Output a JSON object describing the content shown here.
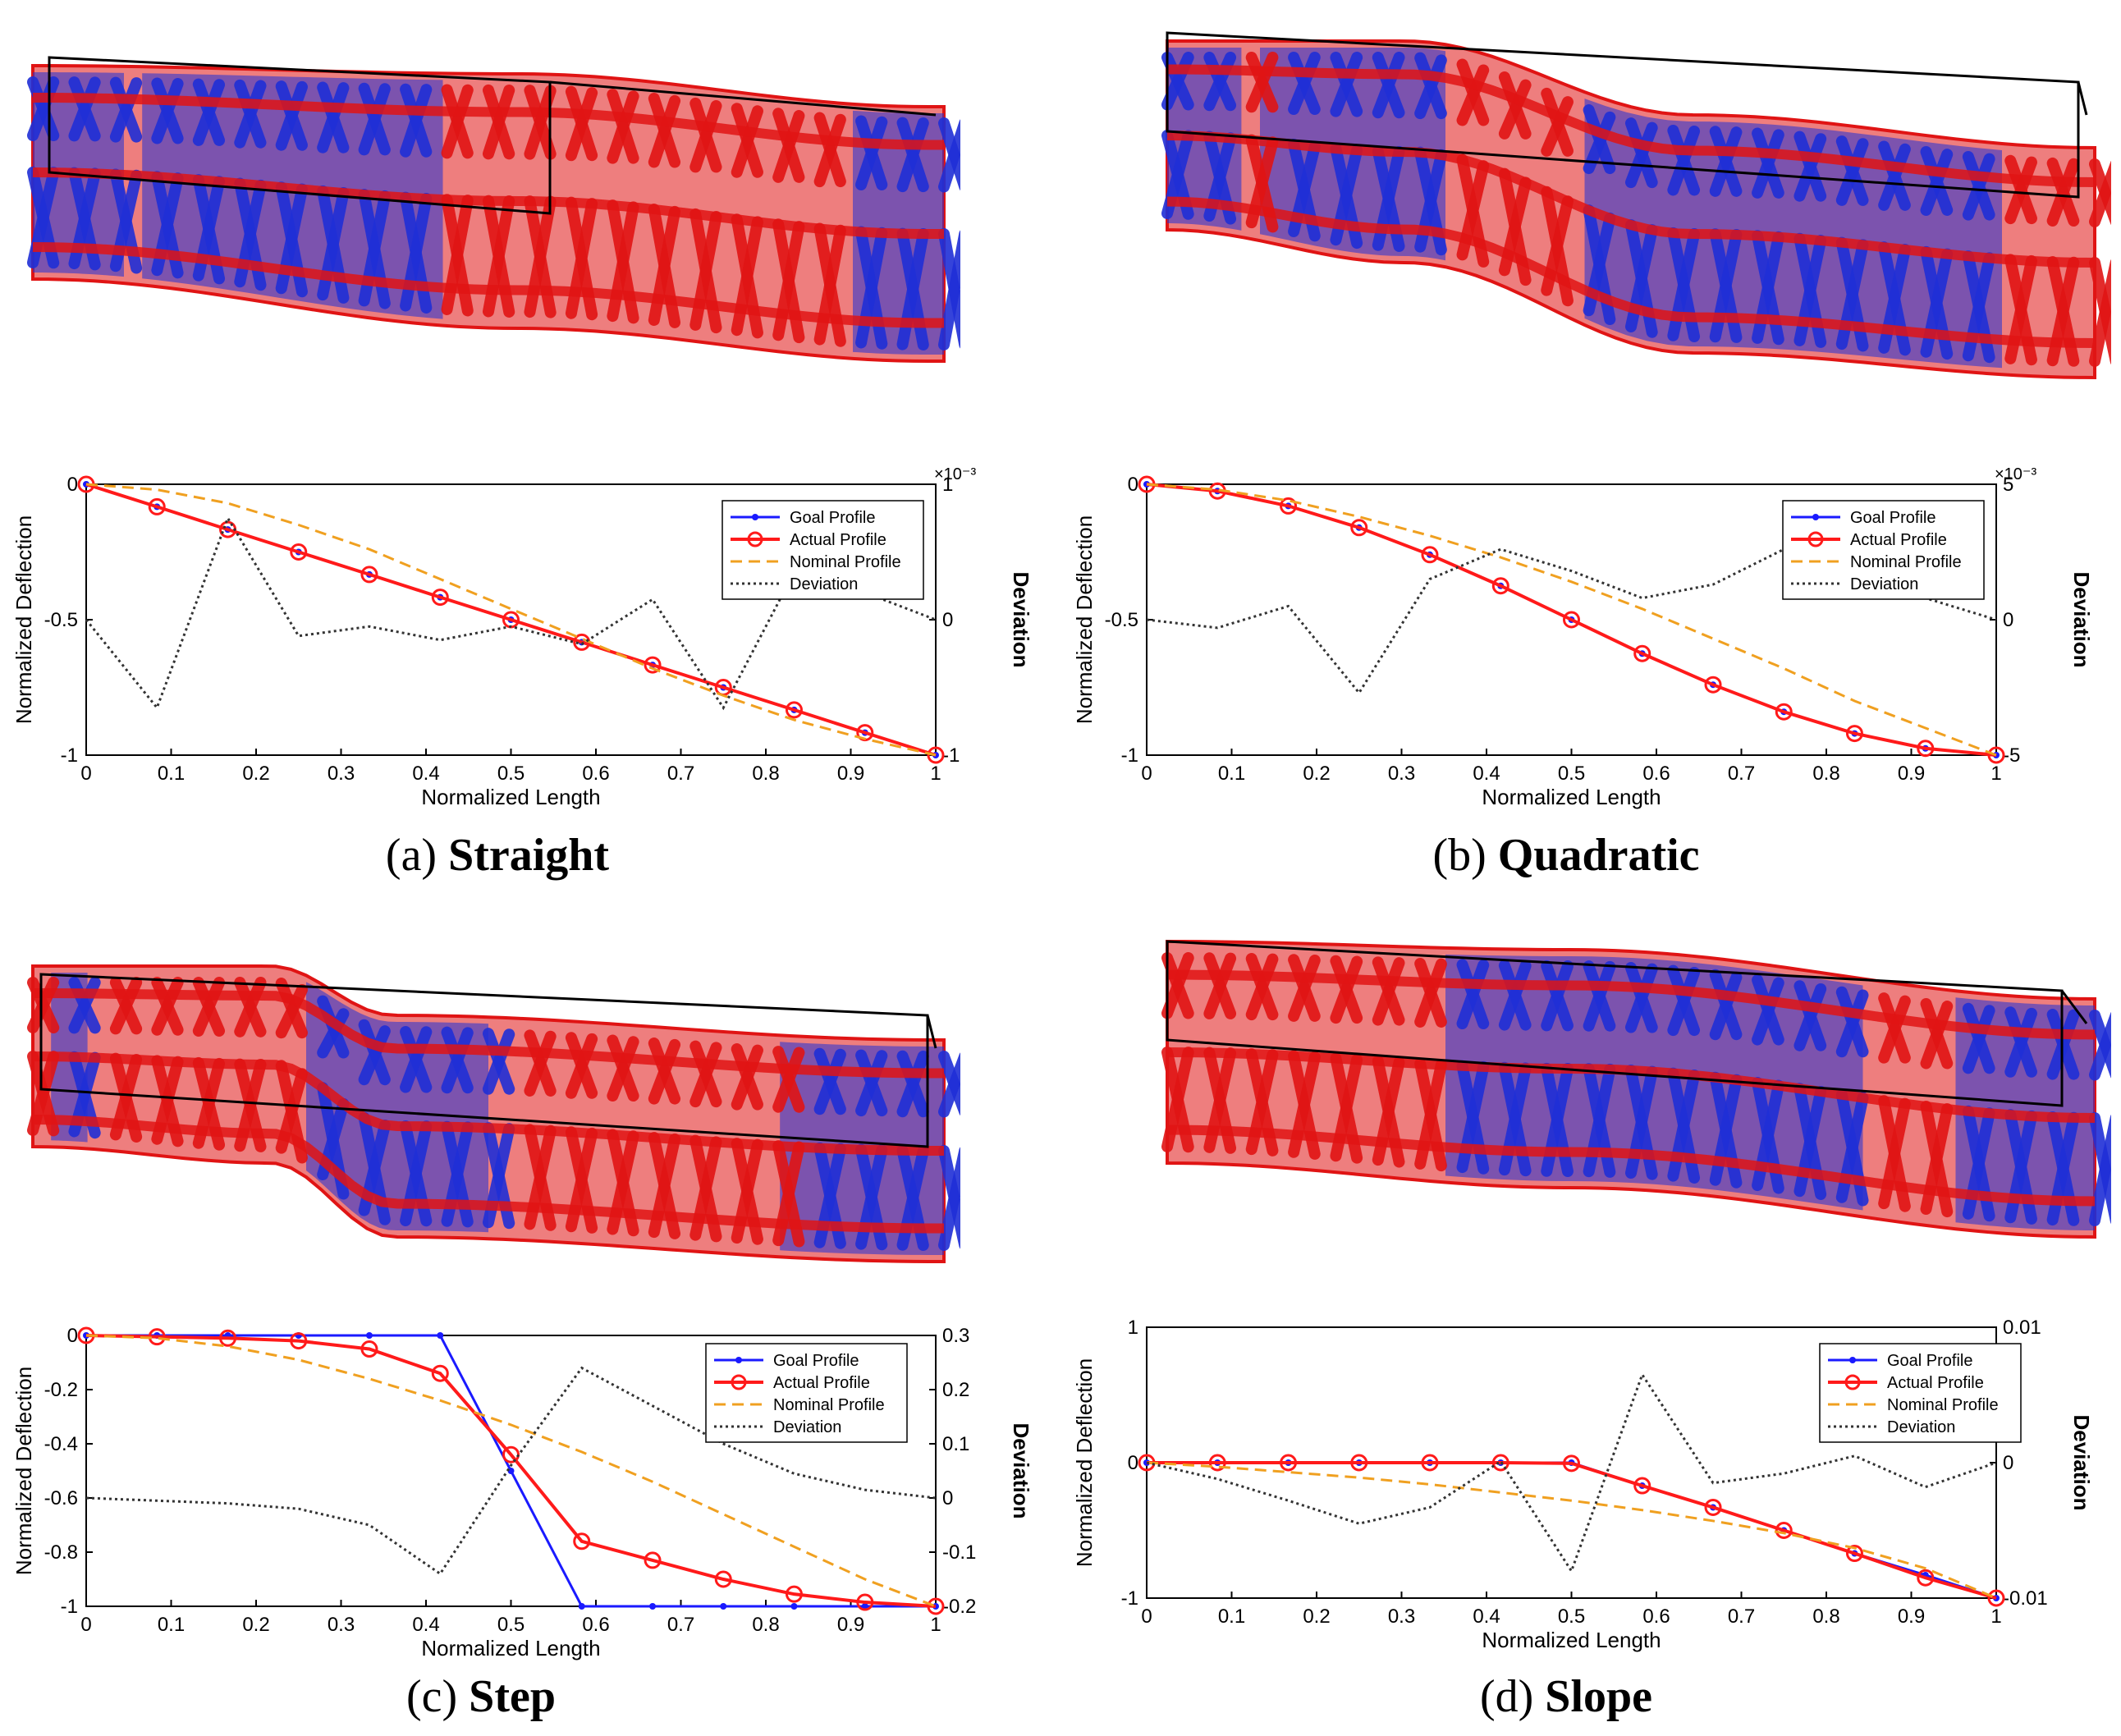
{
  "panels": [
    {
      "id": "a",
      "caption_letter": "(a)",
      "caption_name": "Straight",
      "beam_image": "lattice-beam-straight",
      "plot": {
        "xlabel": "Normalized Length",
        "ylabel": "Normalized Deflection",
        "y2label": "Deviation",
        "y2_multiplier": "×10⁻³",
        "xticks": [
          "0",
          "0.1",
          "0.2",
          "0.3",
          "0.4",
          "0.5",
          "0.6",
          "0.7",
          "0.8",
          "0.9",
          "1"
        ],
        "yticks": [
          "0",
          "-0.5",
          "-1"
        ],
        "y2ticks": [
          "1",
          "0",
          "-1"
        ]
      }
    },
    {
      "id": "b",
      "caption_letter": "(b)",
      "caption_name": "Quadratic",
      "beam_image": "lattice-beam-quadratic",
      "plot": {
        "xlabel": "Normalized Length",
        "ylabel": "Normalized Deflection",
        "y2label": "Deviation",
        "y2_multiplier": "×10⁻³",
        "xticks": [
          "0",
          "0.1",
          "0.2",
          "0.3",
          "0.4",
          "0.5",
          "0.6",
          "0.7",
          "0.8",
          "0.9",
          "1"
        ],
        "yticks": [
          "0",
          "-0.5",
          "-1"
        ],
        "y2ticks": [
          "5",
          "0",
          "-5"
        ]
      }
    },
    {
      "id": "c",
      "caption_letter": "(c)",
      "caption_name": "Step",
      "beam_image": "lattice-beam-step",
      "plot": {
        "xlabel": "Normalized Length",
        "ylabel": "Normalized Deflection",
        "y2label": "Deviation",
        "y2_multiplier": "",
        "xticks": [
          "0",
          "0.1",
          "0.2",
          "0.3",
          "0.4",
          "0.5",
          "0.6",
          "0.7",
          "0.8",
          "0.9",
          "1"
        ],
        "yticks": [
          "0",
          "-0.2",
          "-0.4",
          "-0.6",
          "-0.8",
          "-1"
        ],
        "y2ticks": [
          "0.3",
          "0.2",
          "0.1",
          "0",
          "-0.1",
          "-0.2"
        ]
      }
    },
    {
      "id": "d",
      "caption_letter": "(d)",
      "caption_name": "Slope",
      "beam_image": "lattice-beam-slope",
      "plot": {
        "xlabel": "Normalized Length",
        "ylabel": "Normalized Deflection",
        "y2label": "Deviation",
        "y2_multiplier": "",
        "xticks": [
          "0",
          "0.1",
          "0.2",
          "0.3",
          "0.4",
          "0.5",
          "0.6",
          "0.7",
          "0.8",
          "0.9",
          "1"
        ],
        "yticks": [
          "1",
          "0",
          "-1"
        ],
        "y2ticks": [
          "0.01",
          "0",
          "-0.01"
        ]
      }
    }
  ],
  "legend_labels": [
    "Goal Profile",
    "Actual Profile",
    "Nominal Profile",
    "Deviation"
  ],
  "colors": {
    "goal": "#1a1aff",
    "actual": "#ff1a1a",
    "nominal": "#f0a020",
    "deviation": "#333333",
    "beam_red": "#e01414",
    "beam_blue": "#1f2fd6"
  },
  "chart_data": [
    {
      "type": "line",
      "title": "(a) Straight",
      "xlabel": "Normalized Length",
      "ylabel": "Normalized Deflection",
      "y2label": "Deviation (×10⁻³)",
      "xlim": [
        0,
        1
      ],
      "ylim": [
        -1,
        0
      ],
      "y2lim": [
        -1,
        1
      ],
      "x": [
        0,
        0.0833,
        0.1667,
        0.25,
        0.3333,
        0.4167,
        0.5,
        0.5833,
        0.6667,
        0.75,
        0.8333,
        0.9167,
        1
      ],
      "series": [
        {
          "name": "Goal Profile",
          "axis": "left",
          "marker": "dot",
          "style": "solid",
          "values": [
            0,
            -0.083,
            -0.167,
            -0.25,
            -0.333,
            -0.417,
            -0.5,
            -0.583,
            -0.667,
            -0.75,
            -0.833,
            -0.917,
            -1
          ]
        },
        {
          "name": "Actual Profile",
          "axis": "left",
          "marker": "circle",
          "style": "solid",
          "values": [
            0,
            -0.083,
            -0.167,
            -0.25,
            -0.333,
            -0.417,
            -0.5,
            -0.583,
            -0.667,
            -0.75,
            -0.833,
            -0.917,
            -1
          ]
        },
        {
          "name": "Nominal Profile",
          "axis": "left",
          "marker": "none",
          "style": "dashed",
          "values": [
            0,
            -0.02,
            -0.07,
            -0.15,
            -0.24,
            -0.35,
            -0.46,
            -0.57,
            -0.68,
            -0.78,
            -0.87,
            -0.94,
            -1
          ]
        },
        {
          "name": "Deviation",
          "axis": "right",
          "marker": "none",
          "style": "dotted",
          "values": [
            0,
            -0.65,
            0.75,
            -0.12,
            -0.05,
            -0.15,
            -0.05,
            -0.18,
            0.15,
            -0.65,
            0.35,
            0.2,
            0
          ]
        }
      ]
    },
    {
      "type": "line",
      "title": "(b) Quadratic",
      "xlabel": "Normalized Length",
      "ylabel": "Normalized Deflection",
      "y2label": "Deviation (×10⁻³)",
      "xlim": [
        0,
        1
      ],
      "ylim": [
        -1,
        0
      ],
      "y2lim": [
        -5,
        5
      ],
      "x": [
        0,
        0.0833,
        0.1667,
        0.25,
        0.3333,
        0.4167,
        0.5,
        0.5833,
        0.6667,
        0.75,
        0.8333,
        0.9167,
        1
      ],
      "series": [
        {
          "name": "Goal Profile",
          "axis": "left",
          "marker": "dot",
          "style": "solid",
          "values": [
            0,
            -0.025,
            -0.08,
            -0.16,
            -0.26,
            -0.375,
            -0.5,
            -0.625,
            -0.74,
            -0.84,
            -0.92,
            -0.975,
            -1
          ]
        },
        {
          "name": "Actual Profile",
          "axis": "left",
          "marker": "circle",
          "style": "solid",
          "values": [
            0,
            -0.025,
            -0.08,
            -0.16,
            -0.26,
            -0.375,
            -0.5,
            -0.625,
            -0.74,
            -0.84,
            -0.92,
            -0.975,
            -1
          ]
        },
        {
          "name": "Nominal Profile",
          "axis": "left",
          "marker": "none",
          "style": "dashed",
          "values": [
            0,
            -0.02,
            -0.06,
            -0.12,
            -0.19,
            -0.27,
            -0.36,
            -0.46,
            -0.57,
            -0.68,
            -0.8,
            -0.9,
            -1
          ]
        },
        {
          "name": "Deviation",
          "axis": "right",
          "marker": "none",
          "style": "dotted",
          "values": [
            0,
            -0.3,
            0.5,
            -2.7,
            1.5,
            2.6,
            1.8,
            0.8,
            1.3,
            2.6,
            1.2,
            0.8,
            0
          ]
        }
      ]
    },
    {
      "type": "line",
      "title": "(c) Step",
      "xlabel": "Normalized Length",
      "ylabel": "Normalized Deflection",
      "y2label": "Deviation",
      "xlim": [
        0,
        1
      ],
      "ylim": [
        -1,
        0
      ],
      "y2lim": [
        -0.2,
        0.3
      ],
      "x": [
        0,
        0.0833,
        0.1667,
        0.25,
        0.3333,
        0.4167,
        0.5,
        0.5833,
        0.6667,
        0.75,
        0.8333,
        0.9167,
        1
      ],
      "series": [
        {
          "name": "Goal Profile",
          "axis": "left",
          "marker": "dot",
          "style": "solid",
          "values": [
            0,
            0,
            0,
            0,
            0,
            0,
            -0.5,
            -1,
            -1,
            -1,
            -1,
            -1,
            -1
          ]
        },
        {
          "name": "Actual Profile",
          "axis": "left",
          "marker": "circle",
          "style": "solid",
          "values": [
            0,
            -0.005,
            -0.01,
            -0.02,
            -0.05,
            -0.14,
            -0.44,
            -0.76,
            -0.83,
            -0.9,
            -0.955,
            -0.985,
            -1
          ]
        },
        {
          "name": "Nominal Profile",
          "axis": "left",
          "marker": "none",
          "style": "dashed",
          "values": [
            0,
            -0.01,
            -0.04,
            -0.09,
            -0.16,
            -0.24,
            -0.33,
            -0.43,
            -0.54,
            -0.66,
            -0.78,
            -0.9,
            -1
          ]
        },
        {
          "name": "Deviation",
          "axis": "right",
          "marker": "none",
          "style": "dotted",
          "values": [
            0,
            -0.005,
            -0.01,
            -0.02,
            -0.05,
            -0.14,
            0.06,
            0.24,
            0.17,
            0.1,
            0.045,
            0.015,
            0
          ]
        }
      ]
    },
    {
      "type": "line",
      "title": "(d) Slope",
      "xlabel": "Normalized Length",
      "ylabel": "Normalized Deflection",
      "y2label": "Deviation",
      "xlim": [
        0,
        1
      ],
      "ylim": [
        -1,
        1
      ],
      "y2lim": [
        -0.01,
        0.01
      ],
      "x": [
        0,
        0.0833,
        0.1667,
        0.25,
        0.3333,
        0.4167,
        0.5,
        0.5833,
        0.6667,
        0.75,
        0.8333,
        0.9167,
        1
      ],
      "series": [
        {
          "name": "Goal Profile",
          "axis": "left",
          "marker": "dot",
          "style": "solid",
          "values": [
            0,
            0,
            0,
            0,
            0,
            0,
            0,
            -0.17,
            -0.33,
            -0.5,
            -0.67,
            -0.83,
            -1
          ]
        },
        {
          "name": "Actual Profile",
          "axis": "left",
          "marker": "circle",
          "style": "solid",
          "values": [
            0,
            0,
            0,
            0,
            0,
            0,
            -0.005,
            -0.17,
            -0.33,
            -0.5,
            -0.67,
            -0.85,
            -1
          ]
        },
        {
          "name": "Nominal Profile",
          "axis": "left",
          "marker": "none",
          "style": "dashed",
          "values": [
            0,
            -0.03,
            -0.07,
            -0.11,
            -0.16,
            -0.22,
            -0.28,
            -0.35,
            -0.43,
            -0.52,
            -0.63,
            -0.78,
            -1
          ]
        },
        {
          "name": "Deviation",
          "axis": "right",
          "marker": "none",
          "style": "dotted",
          "values": [
            0,
            -0.0012,
            -0.0028,
            -0.0045,
            -0.0033,
            0.0001,
            -0.008,
            0.0065,
            -0.0015,
            -0.0008,
            0.0005,
            -0.0018,
            0
          ]
        }
      ]
    }
  ]
}
